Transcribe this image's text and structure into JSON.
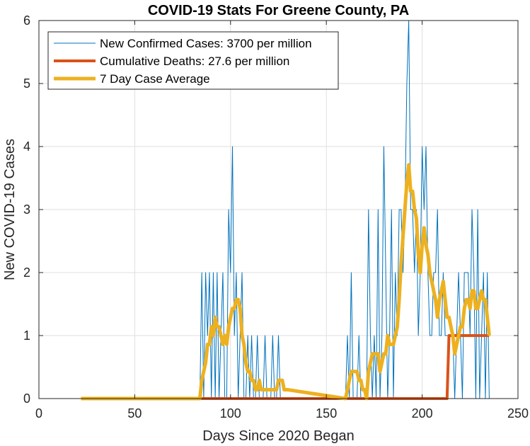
{
  "chart_data": {
    "type": "line",
    "title": "COVID-19 Stats For Greene County, PA",
    "xlabel": "Days Since 2020 Began",
    "ylabel": "New COVID-19 Cases",
    "xlim": [
      0,
      250
    ],
    "ylim": [
      0,
      6
    ],
    "xticks": [
      0,
      50,
      100,
      150,
      200,
      250
    ],
    "yticks": [
      0,
      1,
      2,
      3,
      4,
      5,
      6
    ],
    "grid": true,
    "legend_position": "top-left",
    "series": [
      {
        "name": "New Confirmed Cases: 3700 per million",
        "color": "#0072BD",
        "line_width": 1,
        "x": [
          22,
          84,
          85,
          86,
          87,
          88,
          89,
          90,
          91,
          92,
          93,
          94,
          95,
          96,
          97,
          98,
          99,
          100,
          101,
          102,
          103,
          104,
          105,
          106,
          107,
          108,
          109,
          110,
          111,
          112,
          113,
          114,
          115,
          116,
          117,
          118,
          119,
          120,
          121,
          122,
          123,
          124,
          125,
          126,
          127,
          128,
          129,
          130,
          160,
          161,
          162,
          163,
          164,
          165,
          166,
          167,
          168,
          169,
          170,
          171,
          172,
          173,
          174,
          175,
          176,
          177,
          178,
          179,
          180,
          181,
          182,
          183,
          184,
          185,
          186,
          187,
          188,
          189,
          190,
          191,
          192,
          193,
          194,
          195,
          196,
          197,
          198,
          199,
          200,
          201,
          202,
          203,
          204,
          205,
          206,
          207,
          208,
          209,
          210,
          211,
          212,
          213,
          214,
          215,
          216,
          217,
          218,
          219,
          220,
          221,
          222,
          223,
          224,
          225,
          226,
          227,
          228,
          229,
          230,
          231,
          232,
          233,
          234,
          235
        ],
        "y": [
          0,
          0,
          2,
          0,
          2,
          1,
          2,
          0,
          2,
          0,
          2,
          0,
          1,
          2,
          0,
          0,
          3,
          2,
          4,
          1,
          2,
          0,
          1,
          2,
          0,
          0,
          1,
          0,
          1,
          0,
          0,
          1,
          0,
          0,
          0,
          1,
          0,
          0,
          0,
          1,
          0,
          0,
          1,
          0,
          0,
          0,
          0,
          0,
          0,
          1,
          0,
          2,
          0,
          0,
          0,
          1,
          0,
          0,
          0,
          0,
          3,
          1,
          0,
          1,
          0,
          3,
          0,
          1,
          4,
          2,
          0,
          1,
          3,
          0,
          2,
          1,
          3,
          3,
          2,
          3,
          5,
          6,
          3,
          3,
          2,
          3,
          1,
          2,
          4,
          3,
          4,
          2,
          1,
          1,
          2,
          2,
          3,
          1,
          1,
          2,
          1,
          1,
          1,
          1,
          1,
          0,
          1,
          2,
          1,
          0,
          2,
          2,
          2,
          1,
          3,
          2,
          0,
          3,
          0,
          1,
          2,
          0,
          2,
          0
        ],
        "source_y": "cases"
      },
      {
        "name": "Cumulative Deaths: 27.6 per million",
        "color": "#D95319",
        "line_width": 4,
        "x": [
          22,
          213,
          214,
          235
        ],
        "y": [
          0,
          0,
          1,
          1
        ]
      },
      {
        "name": "7 Day Case Average",
        "color": "#EDB120",
        "line_width": 5,
        "x": [
          22,
          84,
          85,
          86,
          87,
          88,
          89,
          90,
          91,
          92,
          93,
          94,
          95,
          96,
          97,
          98,
          99,
          100,
          101,
          102,
          103,
          104,
          105,
          106,
          107,
          108,
          109,
          110,
          111,
          112,
          113,
          114,
          115,
          116,
          117,
          118,
          119,
          120,
          121,
          122,
          123,
          124,
          125,
          126,
          127,
          128,
          129,
          130,
          160,
          161,
          162,
          163,
          164,
          165,
          166,
          167,
          168,
          169,
          170,
          171,
          172,
          173,
          174,
          175,
          176,
          177,
          178,
          179,
          180,
          181,
          182,
          183,
          184,
          185,
          186,
          187,
          188,
          189,
          190,
          191,
          192,
          193,
          194,
          195,
          196,
          197,
          198,
          199,
          200,
          201,
          202,
          203,
          204,
          205,
          206,
          207,
          208,
          209,
          210,
          211,
          212,
          213,
          214,
          215,
          216,
          217,
          218,
          219,
          220,
          221,
          222,
          223,
          224,
          225,
          226,
          227,
          228,
          229,
          230,
          231,
          232,
          233,
          234,
          235
        ],
        "y": [
          0,
          0,
          0.29,
          0.43,
          0.57,
          0.86,
          0.86,
          1.14,
          1.0,
          1.29,
          1.14,
          1.14,
          1.0,
          0.86,
          1.0,
          0.86,
          1.14,
          1.29,
          1.43,
          1.43,
          1.57,
          1.57,
          1.43,
          1.0,
          0.86,
          0.57,
          0.43,
          0.43,
          0.29,
          0.29,
          0.14,
          0.14,
          0.29,
          0.14,
          0.14,
          0.14,
          0.14,
          0.14,
          0.14,
          0.14,
          0.14,
          0.14,
          0.29,
          0.29,
          0.29,
          0.14,
          0.14,
          0.14,
          0,
          0.14,
          0.29,
          0.43,
          0.43,
          0.43,
          0.43,
          0.29,
          0.29,
          0.14,
          0.14,
          0,
          0.43,
          0.57,
          0.71,
          0.71,
          0.71,
          0.71,
          0.43,
          0.57,
          0.71,
          0.71,
          1.0,
          0.86,
          0.86,
          0.86,
          1.0,
          1.14,
          1.57,
          2.14,
          2.57,
          3.0,
          3.43,
          3.71,
          3.29,
          3.29,
          3.0,
          2.86,
          2.29,
          2.0,
          2.43,
          2.71,
          2.43,
          2.29,
          2.0,
          1.86,
          1.71,
          1.57,
          1.29,
          1.57,
          1.71,
          1.86,
          1.57,
          1.29,
          1.29,
          1.14,
          1.0,
          0.71,
          0.86,
          1.0,
          1.14,
          1.14,
          1.43,
          1.57,
          1.57,
          1.43,
          1.71,
          1.71,
          1.43,
          1.43,
          1.57,
          1.71,
          1.57,
          1.57,
          1.29,
          1.0
        ]
      }
    ]
  }
}
